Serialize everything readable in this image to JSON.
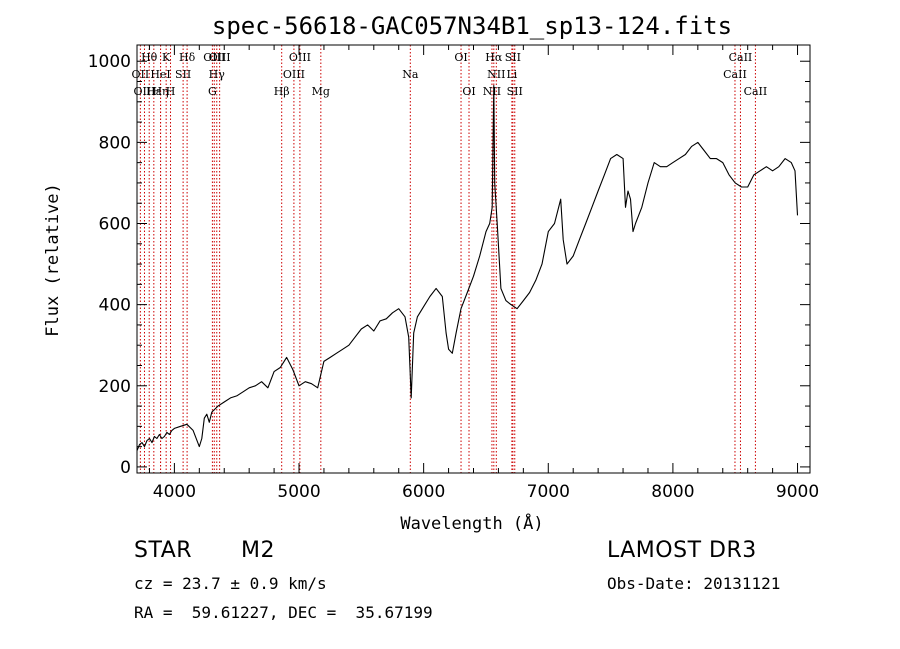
{
  "chart_data": {
    "type": "line",
    "title": "spec-56618-GAC057N34B1_sp13-124.fits",
    "xlabel": "Wavelength (Å)",
    "ylabel": "Flux (relative)",
    "xlim": [
      3700,
      9100
    ],
    "ylim": [
      -15,
      1040
    ],
    "xticks": [
      4000,
      5000,
      6000,
      7000,
      8000,
      9000
    ],
    "yticks": [
      0,
      200,
      400,
      600,
      800,
      1000
    ],
    "colors": {
      "line": "#000000",
      "marker": "#cc0000"
    },
    "series": [
      {
        "name": "flux",
        "x": [
          3700,
          3720,
          3740,
          3760,
          3780,
          3800,
          3820,
          3840,
          3860,
          3880,
          3900,
          3920,
          3940,
          3960,
          3980,
          4000,
          4050,
          4100,
          4150,
          4200,
          4220,
          4240,
          4260,
          4280,
          4300,
          4350,
          4400,
          4450,
          4500,
          4550,
          4600,
          4650,
          4700,
          4750,
          4800,
          4850,
          4880,
          4900,
          4950,
          5000,
          5050,
          5100,
          5150,
          5200,
          5250,
          5300,
          5350,
          5400,
          5450,
          5500,
          5550,
          5600,
          5650,
          5700,
          5750,
          5800,
          5850,
          5880,
          5900,
          5920,
          5950,
          6000,
          6050,
          6100,
          6150,
          6180,
          6200,
          6230,
          6260,
          6300,
          6350,
          6400,
          6450,
          6500,
          6530,
          6550,
          6563,
          6570,
          6590,
          6620,
          6660,
          6700,
          6750,
          6800,
          6850,
          6900,
          6950,
          7000,
          7050,
          7100,
          7120,
          7150,
          7200,
          7250,
          7300,
          7350,
          7400,
          7450,
          7500,
          7550,
          7600,
          7620,
          7640,
          7660,
          7680,
          7700,
          7750,
          7800,
          7850,
          7900,
          7950,
          8000,
          8050,
          8100,
          8150,
          8200,
          8250,
          8300,
          8350,
          8400,
          8450,
          8500,
          8550,
          8600,
          8650,
          8700,
          8750,
          8800,
          8850,
          8900,
          8950,
          8980,
          9000
        ],
        "y": [
          40,
          55,
          60,
          50,
          65,
          70,
          60,
          75,
          70,
          80,
          70,
          75,
          85,
          80,
          90,
          95,
          100,
          105,
          90,
          50,
          70,
          120,
          130,
          110,
          135,
          150,
          160,
          170,
          175,
          185,
          195,
          200,
          210,
          195,
          235,
          245,
          260,
          270,
          240,
          200,
          210,
          205,
          195,
          260,
          270,
          280,
          290,
          300,
          320,
          340,
          350,
          335,
          360,
          365,
          380,
          390,
          370,
          320,
          170,
          330,
          370,
          395,
          420,
          440,
          420,
          330,
          290,
          280,
          330,
          390,
          430,
          470,
          520,
          580,
          600,
          640,
          940,
          700,
          600,
          440,
          410,
          400,
          390,
          410,
          430,
          460,
          500,
          580,
          600,
          660,
          560,
          500,
          520,
          560,
          600,
          640,
          680,
          720,
          760,
          770,
          760,
          640,
          680,
          660,
          580,
          600,
          640,
          700,
          750,
          740,
          740,
          750,
          760,
          770,
          790,
          800,
          780,
          760,
          760,
          750,
          720,
          700,
          690,
          690,
          720,
          730,
          740,
          730,
          740,
          760,
          750,
          730,
          620
        ]
      }
    ],
    "lines": [
      {
        "name": "Hθ",
        "x": 3798,
        "row": 0
      },
      {
        "name": "OII",
        "x": 3727,
        "row": 1
      },
      {
        "name": "OIII",
        "x": 3760,
        "row": 2
      },
      {
        "name": "Hε",
        "x": 3835,
        "row": 2
      },
      {
        "name": "Hη",
        "x": 3889,
        "row": 2
      },
      {
        "name": "HeI",
        "x": 3889,
        "row": 1
      },
      {
        "name": "K",
        "x": 3934,
        "row": 0
      },
      {
        "name": "H",
        "x": 3969,
        "row": 2
      },
      {
        "name": "SII",
        "x": 4070,
        "row": 1
      },
      {
        "name": "Hδ",
        "x": 4102,
        "row": 0
      },
      {
        "name": "OIII",
        "x": 4320,
        "row": 0
      },
      {
        "name": "Hγ",
        "x": 4340,
        "row": 1
      },
      {
        "name": "G",
        "x": 4305,
        "row": 2
      },
      {
        "name": "OIII",
        "x": 4363,
        "row": 0
      },
      {
        "name": "Hβ",
        "x": 4861,
        "row": 2
      },
      {
        "name": "OIII",
        "x": 4959,
        "row": 1
      },
      {
        "name": "OIII",
        "x": 5007,
        "row": 0
      },
      {
        "name": "Mg",
        "x": 5175,
        "row": 2
      },
      {
        "name": "Na",
        "x": 5893,
        "row": 1
      },
      {
        "name": "OI",
        "x": 6300,
        "row": 0
      },
      {
        "name": "OI",
        "x": 6364,
        "row": 2
      },
      {
        "name": "NII",
        "x": 6548,
        "row": 2
      },
      {
        "name": "Hα",
        "x": 6563,
        "row": 0
      },
      {
        "name": "NII",
        "x": 6583,
        "row": 1
      },
      {
        "name": "SII",
        "x": 6716,
        "row": 0
      },
      {
        "name": "Li",
        "x": 6708,
        "row": 1
      },
      {
        "name": "SII",
        "x": 6731,
        "row": 2
      },
      {
        "name": "CaII",
        "x": 8498,
        "row": 1
      },
      {
        "name": "CaII",
        "x": 8542,
        "row": 0
      },
      {
        "name": "CaII",
        "x": 8662,
        "row": 2
      }
    ]
  },
  "info": {
    "class": "STAR",
    "subclass": "M2",
    "survey": "LAMOST DR3",
    "cz": "cz = 23.7 ± 0.9 km/s",
    "obs_date": "Obs-Date: 20131121",
    "radec": "RA =  59.61227, DEC =  35.67199"
  }
}
